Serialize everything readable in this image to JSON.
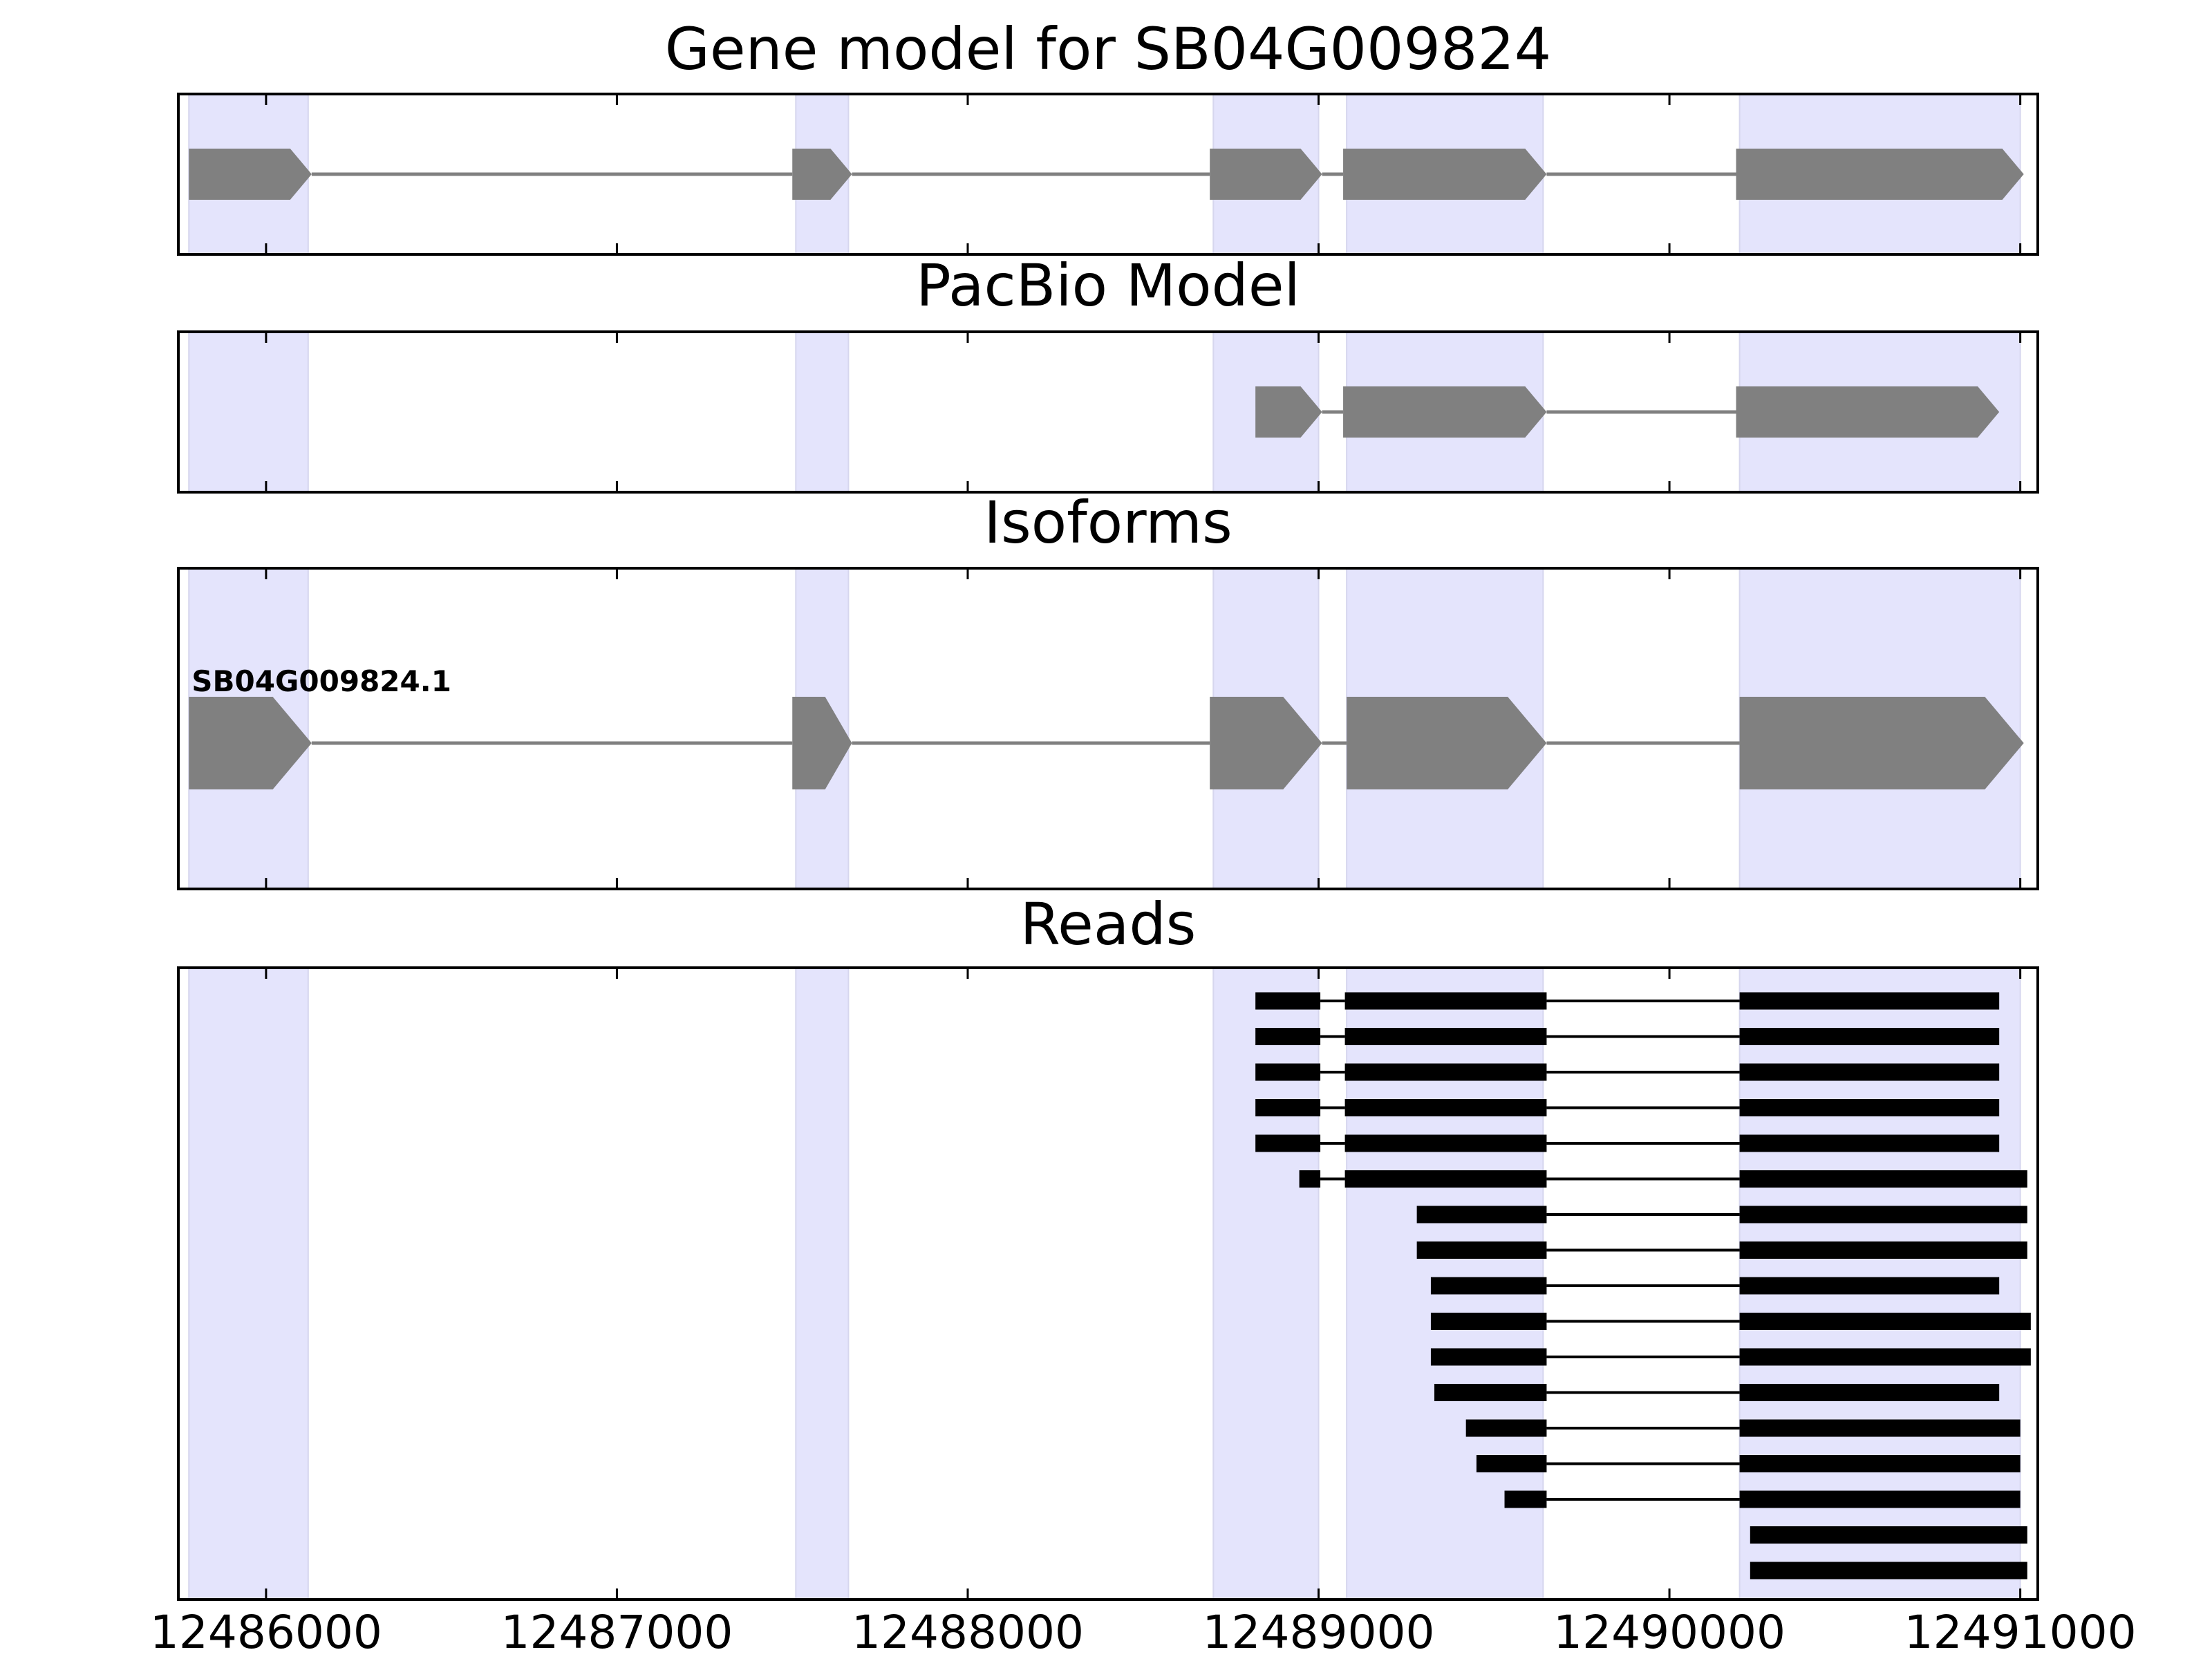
{
  "chart_data": {
    "type": "gene-model",
    "xlim": [
      12485750,
      12491050
    ],
    "x_ticks": [
      12486000,
      12487000,
      12488000,
      12489000,
      12490000,
      12491000
    ],
    "x_tick_labels": [
      "12486000",
      "12487000",
      "12488000",
      "12489000",
      "12490000",
      "12491000"
    ],
    "colors": {
      "highlight": "#e4e4fc",
      "feature": "#808080",
      "read": "#000000",
      "axes": "#000000"
    },
    "highlight_regions": [
      [
        12485780,
        12486120
      ],
      [
        12487510,
        12487660
      ],
      [
        12488700,
        12489000
      ],
      [
        12489080,
        12489640
      ],
      [
        12490200,
        12491000
      ]
    ],
    "panels": [
      {
        "title": "Gene model for SB04G009824",
        "strand": "+",
        "exons": [
          [
            12485780,
            12486130
          ],
          [
            12487500,
            12487670
          ],
          [
            12488690,
            12489010
          ],
          [
            12489070,
            12489650
          ],
          [
            12490190,
            12491010
          ]
        ]
      },
      {
        "title": "PacBio Model",
        "strand": "+",
        "exons": [
          [
            12488820,
            12489010
          ],
          [
            12489070,
            12489650
          ],
          [
            12490190,
            12490940
          ]
        ]
      },
      {
        "title": "Isoforms",
        "strand": "+",
        "isoform_label": "SB04G009824.1",
        "exons": [
          [
            12485780,
            12486130
          ],
          [
            12487500,
            12487670
          ],
          [
            12488690,
            12489010
          ],
          [
            12489080,
            12489650
          ],
          [
            12490200,
            12491010
          ]
        ]
      },
      {
        "title": "Reads",
        "reads": [
          [
            [
              12488820,
              12489005
            ],
            [
              12489075,
              12489650
            ],
            [
              12490200,
              12490940
            ]
          ],
          [
            [
              12488820,
              12489005
            ],
            [
              12489075,
              12489650
            ],
            [
              12490200,
              12490940
            ]
          ],
          [
            [
              12488820,
              12489005
            ],
            [
              12489075,
              12489650
            ],
            [
              12490200,
              12490940
            ]
          ],
          [
            [
              12488820,
              12489005
            ],
            [
              12489075,
              12489650
            ],
            [
              12490200,
              12490940
            ]
          ],
          [
            [
              12488820,
              12489005
            ],
            [
              12489075,
              12489650
            ],
            [
              12490200,
              12490940
            ]
          ],
          [
            [
              12488945,
              12489005
            ],
            [
              12489075,
              12489650
            ],
            [
              12490200,
              12491020
            ]
          ],
          [
            [
              12489280,
              12489650
            ],
            [
              12490200,
              12491020
            ]
          ],
          [
            [
              12489280,
              12489650
            ],
            [
              12490200,
              12491020
            ]
          ],
          [
            [
              12489320,
              12489650
            ],
            [
              12490200,
              12490940
            ]
          ],
          [
            [
              12489320,
              12489650
            ],
            [
              12490200,
              12491030
            ]
          ],
          [
            [
              12489320,
              12489650
            ],
            [
              12490200,
              12491030
            ]
          ],
          [
            [
              12489330,
              12489650
            ],
            [
              12490200,
              12490940
            ]
          ],
          [
            [
              12489420,
              12489650
            ],
            [
              12490200,
              12491000
            ]
          ],
          [
            [
              12489450,
              12489650
            ],
            [
              12490200,
              12491000
            ]
          ],
          [
            [
              12489530,
              12489650
            ],
            [
              12490200,
              12491000
            ]
          ],
          [
            [
              12490230,
              12491020
            ]
          ],
          [
            [
              12490230,
              12491020
            ]
          ]
        ]
      }
    ]
  }
}
